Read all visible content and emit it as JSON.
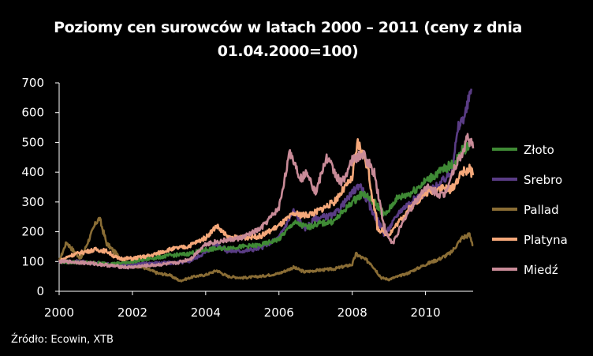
{
  "source": "Źródło: Ecowin, XTB",
  "colors": {
    "Złoto": "#3f8a35",
    "Srebro": "#5a3c85",
    "Pallad": "#8a6d35",
    "Platyna": "#f5a87a",
    "Miedź": "#c98b98"
  },
  "chart_data": {
    "type": "line",
    "title": "Poziomy cen surowców w latach 2000 – 2011 (ceny z dnia 01.04.2000=100)",
    "xlabel": "",
    "ylabel": "",
    "xlim": [
      2000.0,
      2011.3
    ],
    "ylim": [
      0,
      700
    ],
    "x_ticks": [
      "2000",
      "2002",
      "2004",
      "2006",
      "2008",
      "2010"
    ],
    "y_ticks": [
      "0",
      "100",
      "200",
      "300",
      "400",
      "500",
      "600",
      "700"
    ],
    "grid": false,
    "legend": "right",
    "series": [
      {
        "name": "Złoto",
        "points": [
          [
            2000.0,
            100
          ],
          [
            2000.5,
            97
          ],
          [
            2001.0,
            95
          ],
          [
            2001.5,
            92
          ],
          [
            2002.0,
            100
          ],
          [
            2002.5,
            110
          ],
          [
            2003.0,
            120
          ],
          [
            2003.5,
            125
          ],
          [
            2004.0,
            140
          ],
          [
            2004.5,
            145
          ],
          [
            2005.0,
            150
          ],
          [
            2005.5,
            155
          ],
          [
            2006.0,
            175
          ],
          [
            2006.4,
            230
          ],
          [
            2006.8,
            215
          ],
          [
            2007.0,
            225
          ],
          [
            2007.5,
            235
          ],
          [
            2008.0,
            300
          ],
          [
            2008.3,
            330
          ],
          [
            2008.6,
            300
          ],
          [
            2008.9,
            255
          ],
          [
            2009.2,
            310
          ],
          [
            2009.6,
            330
          ],
          [
            2010.0,
            370
          ],
          [
            2010.5,
            410
          ],
          [
            2010.8,
            430
          ],
          [
            2011.0,
            470
          ],
          [
            2011.2,
            495
          ]
        ]
      },
      {
        "name": "Srebro",
        "points": [
          [
            2000.0,
            100
          ],
          [
            2000.5,
            100
          ],
          [
            2001.0,
            95
          ],
          [
            2001.5,
            88
          ],
          [
            2002.0,
            90
          ],
          [
            2002.5,
            95
          ],
          [
            2003.0,
            95
          ],
          [
            2003.5,
            98
          ],
          [
            2004.0,
            130
          ],
          [
            2004.3,
            160
          ],
          [
            2004.6,
            135
          ],
          [
            2005.0,
            135
          ],
          [
            2005.5,
            145
          ],
          [
            2006.0,
            180
          ],
          [
            2006.4,
            270
          ],
          [
            2006.7,
            210
          ],
          [
            2007.0,
            245
          ],
          [
            2007.5,
            255
          ],
          [
            2008.0,
            330
          ],
          [
            2008.2,
            360
          ],
          [
            2008.5,
            280
          ],
          [
            2008.9,
            190
          ],
          [
            2009.3,
            270
          ],
          [
            2009.7,
            310
          ],
          [
            2010.0,
            330
          ],
          [
            2010.4,
            360
          ],
          [
            2010.7,
            400
          ],
          [
            2010.9,
            550
          ],
          [
            2011.1,
            600
          ],
          [
            2011.25,
            680
          ]
        ]
      },
      {
        "name": "Pallad",
        "points": [
          [
            2000.0,
            100
          ],
          [
            2000.2,
            165
          ],
          [
            2000.4,
            135
          ],
          [
            2000.6,
            110
          ],
          [
            2000.8,
            170
          ],
          [
            2001.0,
            230
          ],
          [
            2001.1,
            245
          ],
          [
            2001.3,
            160
          ],
          [
            2001.6,
            120
          ],
          [
            2001.9,
            90
          ],
          [
            2002.3,
            80
          ],
          [
            2002.7,
            60
          ],
          [
            2003.0,
            55
          ],
          [
            2003.3,
            35
          ],
          [
            2003.7,
            50
          ],
          [
            2004.0,
            55
          ],
          [
            2004.3,
            70
          ],
          [
            2004.6,
            50
          ],
          [
            2005.0,
            45
          ],
          [
            2005.5,
            50
          ],
          [
            2006.0,
            60
          ],
          [
            2006.4,
            80
          ],
          [
            2006.7,
            65
          ],
          [
            2007.0,
            70
          ],
          [
            2007.5,
            75
          ],
          [
            2008.0,
            90
          ],
          [
            2008.1,
            125
          ],
          [
            2008.5,
            95
          ],
          [
            2008.8,
            45
          ],
          [
            2009.0,
            40
          ],
          [
            2009.5,
            60
          ],
          [
            2010.0,
            90
          ],
          [
            2010.4,
            110
          ],
          [
            2010.7,
            130
          ],
          [
            2011.0,
            180
          ],
          [
            2011.2,
            190
          ],
          [
            2011.3,
            155
          ]
        ]
      },
      {
        "name": "Platyna",
        "points": [
          [
            2000.0,
            100
          ],
          [
            2000.3,
            120
          ],
          [
            2000.6,
            130
          ],
          [
            2001.0,
            140
          ],
          [
            2001.3,
            135
          ],
          [
            2001.6,
            110
          ],
          [
            2002.0,
            110
          ],
          [
            2002.5,
            120
          ],
          [
            2003.0,
            140
          ],
          [
            2003.5,
            150
          ],
          [
            2004.0,
            180
          ],
          [
            2004.3,
            220
          ],
          [
            2004.6,
            180
          ],
          [
            2005.0,
            180
          ],
          [
            2005.5,
            185
          ],
          [
            2006.0,
            220
          ],
          [
            2006.4,
            260
          ],
          [
            2006.7,
            255
          ],
          [
            2007.0,
            265
          ],
          [
            2007.5,
            300
          ],
          [
            2008.0,
            380
          ],
          [
            2008.15,
            500
          ],
          [
            2008.4,
            430
          ],
          [
            2008.7,
            210
          ],
          [
            2009.0,
            190
          ],
          [
            2009.5,
            270
          ],
          [
            2010.0,
            330
          ],
          [
            2010.4,
            350
          ],
          [
            2010.7,
            340
          ],
          [
            2011.0,
            400
          ],
          [
            2011.2,
            410
          ],
          [
            2011.3,
            390
          ]
        ]
      },
      {
        "name": "Miedź",
        "points": [
          [
            2000.0,
            100
          ],
          [
            2000.5,
            98
          ],
          [
            2001.0,
            92
          ],
          [
            2001.5,
            85
          ],
          [
            2001.9,
            80
          ],
          [
            2002.3,
            85
          ],
          [
            2002.8,
            90
          ],
          [
            2003.2,
            95
          ],
          [
            2003.6,
            110
          ],
          [
            2004.0,
            160
          ],
          [
            2004.5,
            170
          ],
          [
            2005.0,
            180
          ],
          [
            2005.5,
            210
          ],
          [
            2006.0,
            280
          ],
          [
            2006.3,
            470
          ],
          [
            2006.6,
            380
          ],
          [
            2006.8,
            400
          ],
          [
            2007.0,
            330
          ],
          [
            2007.3,
            450
          ],
          [
            2007.7,
            360
          ],
          [
            2008.0,
            440
          ],
          [
            2008.3,
            460
          ],
          [
            2008.6,
            400
          ],
          [
            2008.9,
            200
          ],
          [
            2009.1,
            160
          ],
          [
            2009.5,
            260
          ],
          [
            2010.0,
            350
          ],
          [
            2010.5,
            320
          ],
          [
            2010.8,
            420
          ],
          [
            2011.0,
            460
          ],
          [
            2011.15,
            520
          ],
          [
            2011.3,
            480
          ]
        ]
      }
    ]
  }
}
